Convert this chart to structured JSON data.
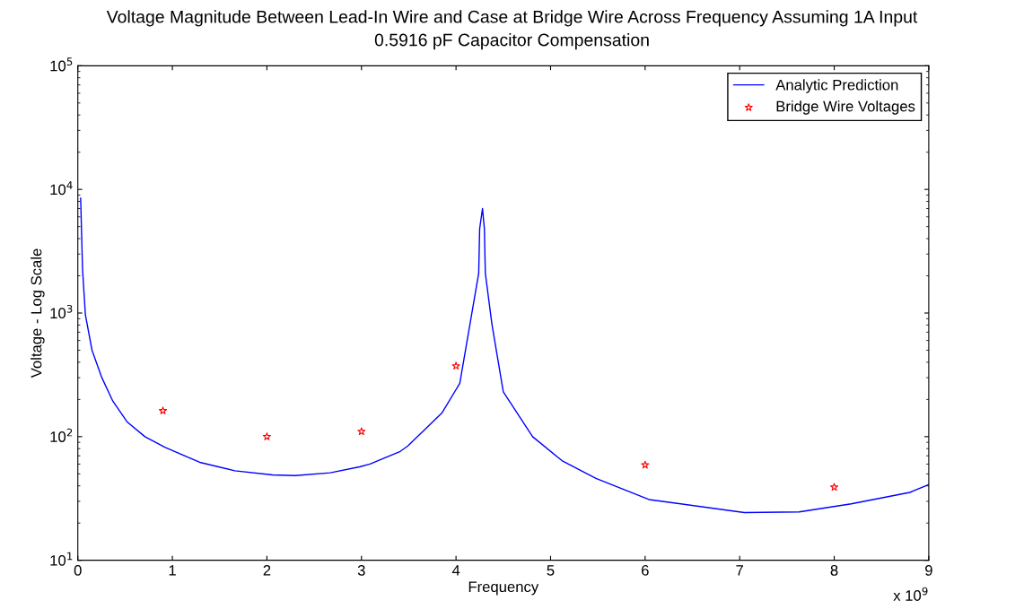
{
  "chart_data": {
    "type": "line",
    "title": "Voltage Magnitude Between Lead-In Wire and Case at Bridge Wire Across Frequency Assuming 1A Input",
    "subtitle": "0.5916 pF Capacitor Compensation",
    "xlabel": "Frequency",
    "ylabel": "Voltage - Log Scale",
    "annotations": [
      "x 10$^{9}$"
    ],
    "log": "y",
    "xlim": [
      0,
      9
    ],
    "xticks": [
      0,
      1,
      2,
      3,
      4,
      5,
      6,
      7,
      8,
      9
    ],
    "ylim": [
      10,
      100000
    ],
    "yticks": [
      {
        "value": 10,
        "label": "10$^{1}$"
      },
      {
        "value": 100,
        "label": "10$^{2}$"
      },
      {
        "value": 1000,
        "label": "10$^{3}$"
      },
      {
        "value": 10000,
        "label": "10$^{4}$"
      },
      {
        "value": 100000,
        "label": "10$^{5}$"
      }
    ],
    "grid": false,
    "legend": "top right",
    "series": [
      {
        "name": "Analytic Prediction",
        "color": "#0000ff",
        "marker": "none",
        "line_style": "solid",
        "x": [
          0.03,
          0.05,
          0.08,
          0.15,
          0.25,
          0.37,
          0.52,
          0.71,
          0.92,
          1.29,
          1.66,
          2.06,
          2.3,
          2.67,
          2.98,
          3.09,
          3.41,
          3.49,
          3.85,
          4.04,
          4.24,
          4.25,
          4.28,
          4.3,
          4.31,
          4.38,
          4.5,
          4.81,
          5.12,
          5.48,
          6.04,
          7.05,
          7.63,
          8.18,
          8.8,
          9
        ],
        "values": [
          8500,
          2250,
          970,
          500,
          305,
          194,
          132,
          100,
          82,
          62,
          53,
          49,
          48.4,
          51,
          57,
          60,
          76,
          84,
          155,
          270,
          2100,
          4800,
          7000,
          4800,
          2100,
          810,
          230,
          100,
          64,
          46,
          31,
          24.3,
          24.6,
          28.6,
          35.4,
          41
        ]
      },
      {
        "name": "Bridge Wire Voltages",
        "type": "scatter",
        "color": "#ff0000",
        "marker": "star",
        "x": [
          0.9,
          2,
          3,
          4,
          6,
          8
        ],
        "values": [
          162,
          100,
          110,
          373,
          59,
          39
        ]
      }
    ]
  }
}
